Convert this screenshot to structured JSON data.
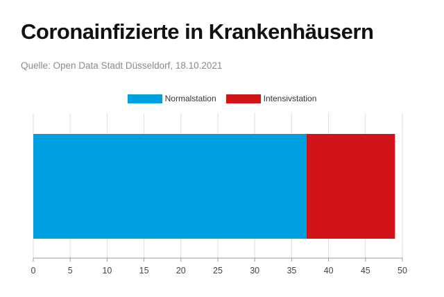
{
  "header": {
    "title": "Coronainfizierte in Krankenhäusern",
    "source": "Quelle: Open Data Stadt Düsseldorf, 18.10.2021"
  },
  "chart_data": {
    "type": "bar",
    "orientation": "horizontal",
    "stacked": true,
    "categories": [
      ""
    ],
    "series": [
      {
        "name": "Normalstation",
        "values": [
          37
        ],
        "color": "#009fdf"
      },
      {
        "name": "Intensivstation",
        "values": [
          12
        ],
        "color": "#d0141a"
      }
    ],
    "xlim": [
      0,
      50
    ],
    "xticks": [
      0,
      5,
      10,
      15,
      20,
      25,
      30,
      35,
      40,
      45,
      50
    ],
    "grid": true,
    "legend_position": "top-center"
  }
}
